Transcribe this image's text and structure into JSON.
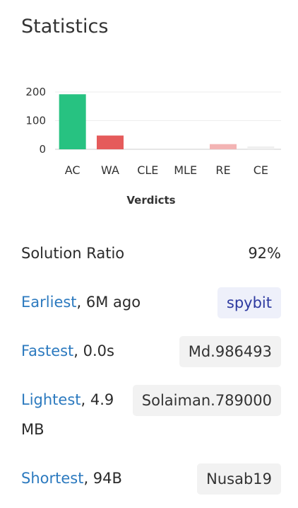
{
  "title": "Statistics",
  "chart_data": {
    "type": "bar",
    "categories": [
      "AC",
      "WA",
      "CLE",
      "MLE",
      "RE",
      "CE"
    ],
    "values": [
      192,
      48,
      0,
      0,
      18,
      10
    ],
    "colors": [
      "#27c281",
      "#e55b5b",
      "#f5c542",
      "#8fa8d9",
      "#f3b4b4",
      "#f0f0f0"
    ],
    "xlabel": "Verdicts",
    "ylabel": "",
    "yticks": [
      0,
      100,
      200
    ],
    "ylim": [
      0,
      200
    ],
    "grid": true
  },
  "stats": {
    "ratio": {
      "label": "Solution Ratio",
      "value": "92%"
    },
    "earliest": {
      "link": "Earliest",
      "suffix": ", 6M ago",
      "user": "spybit"
    },
    "fastest": {
      "link": "Fastest",
      "suffix": ", 0.0s",
      "user": "Md.986493"
    },
    "lightest": {
      "link": "Lightest",
      "suffix": ", 4.9",
      "suffix2": "MB",
      "user": "Solaiman.789000"
    },
    "shortest": {
      "link": "Shortest",
      "suffix": ", 94B",
      "user": "Nusab19"
    }
  }
}
